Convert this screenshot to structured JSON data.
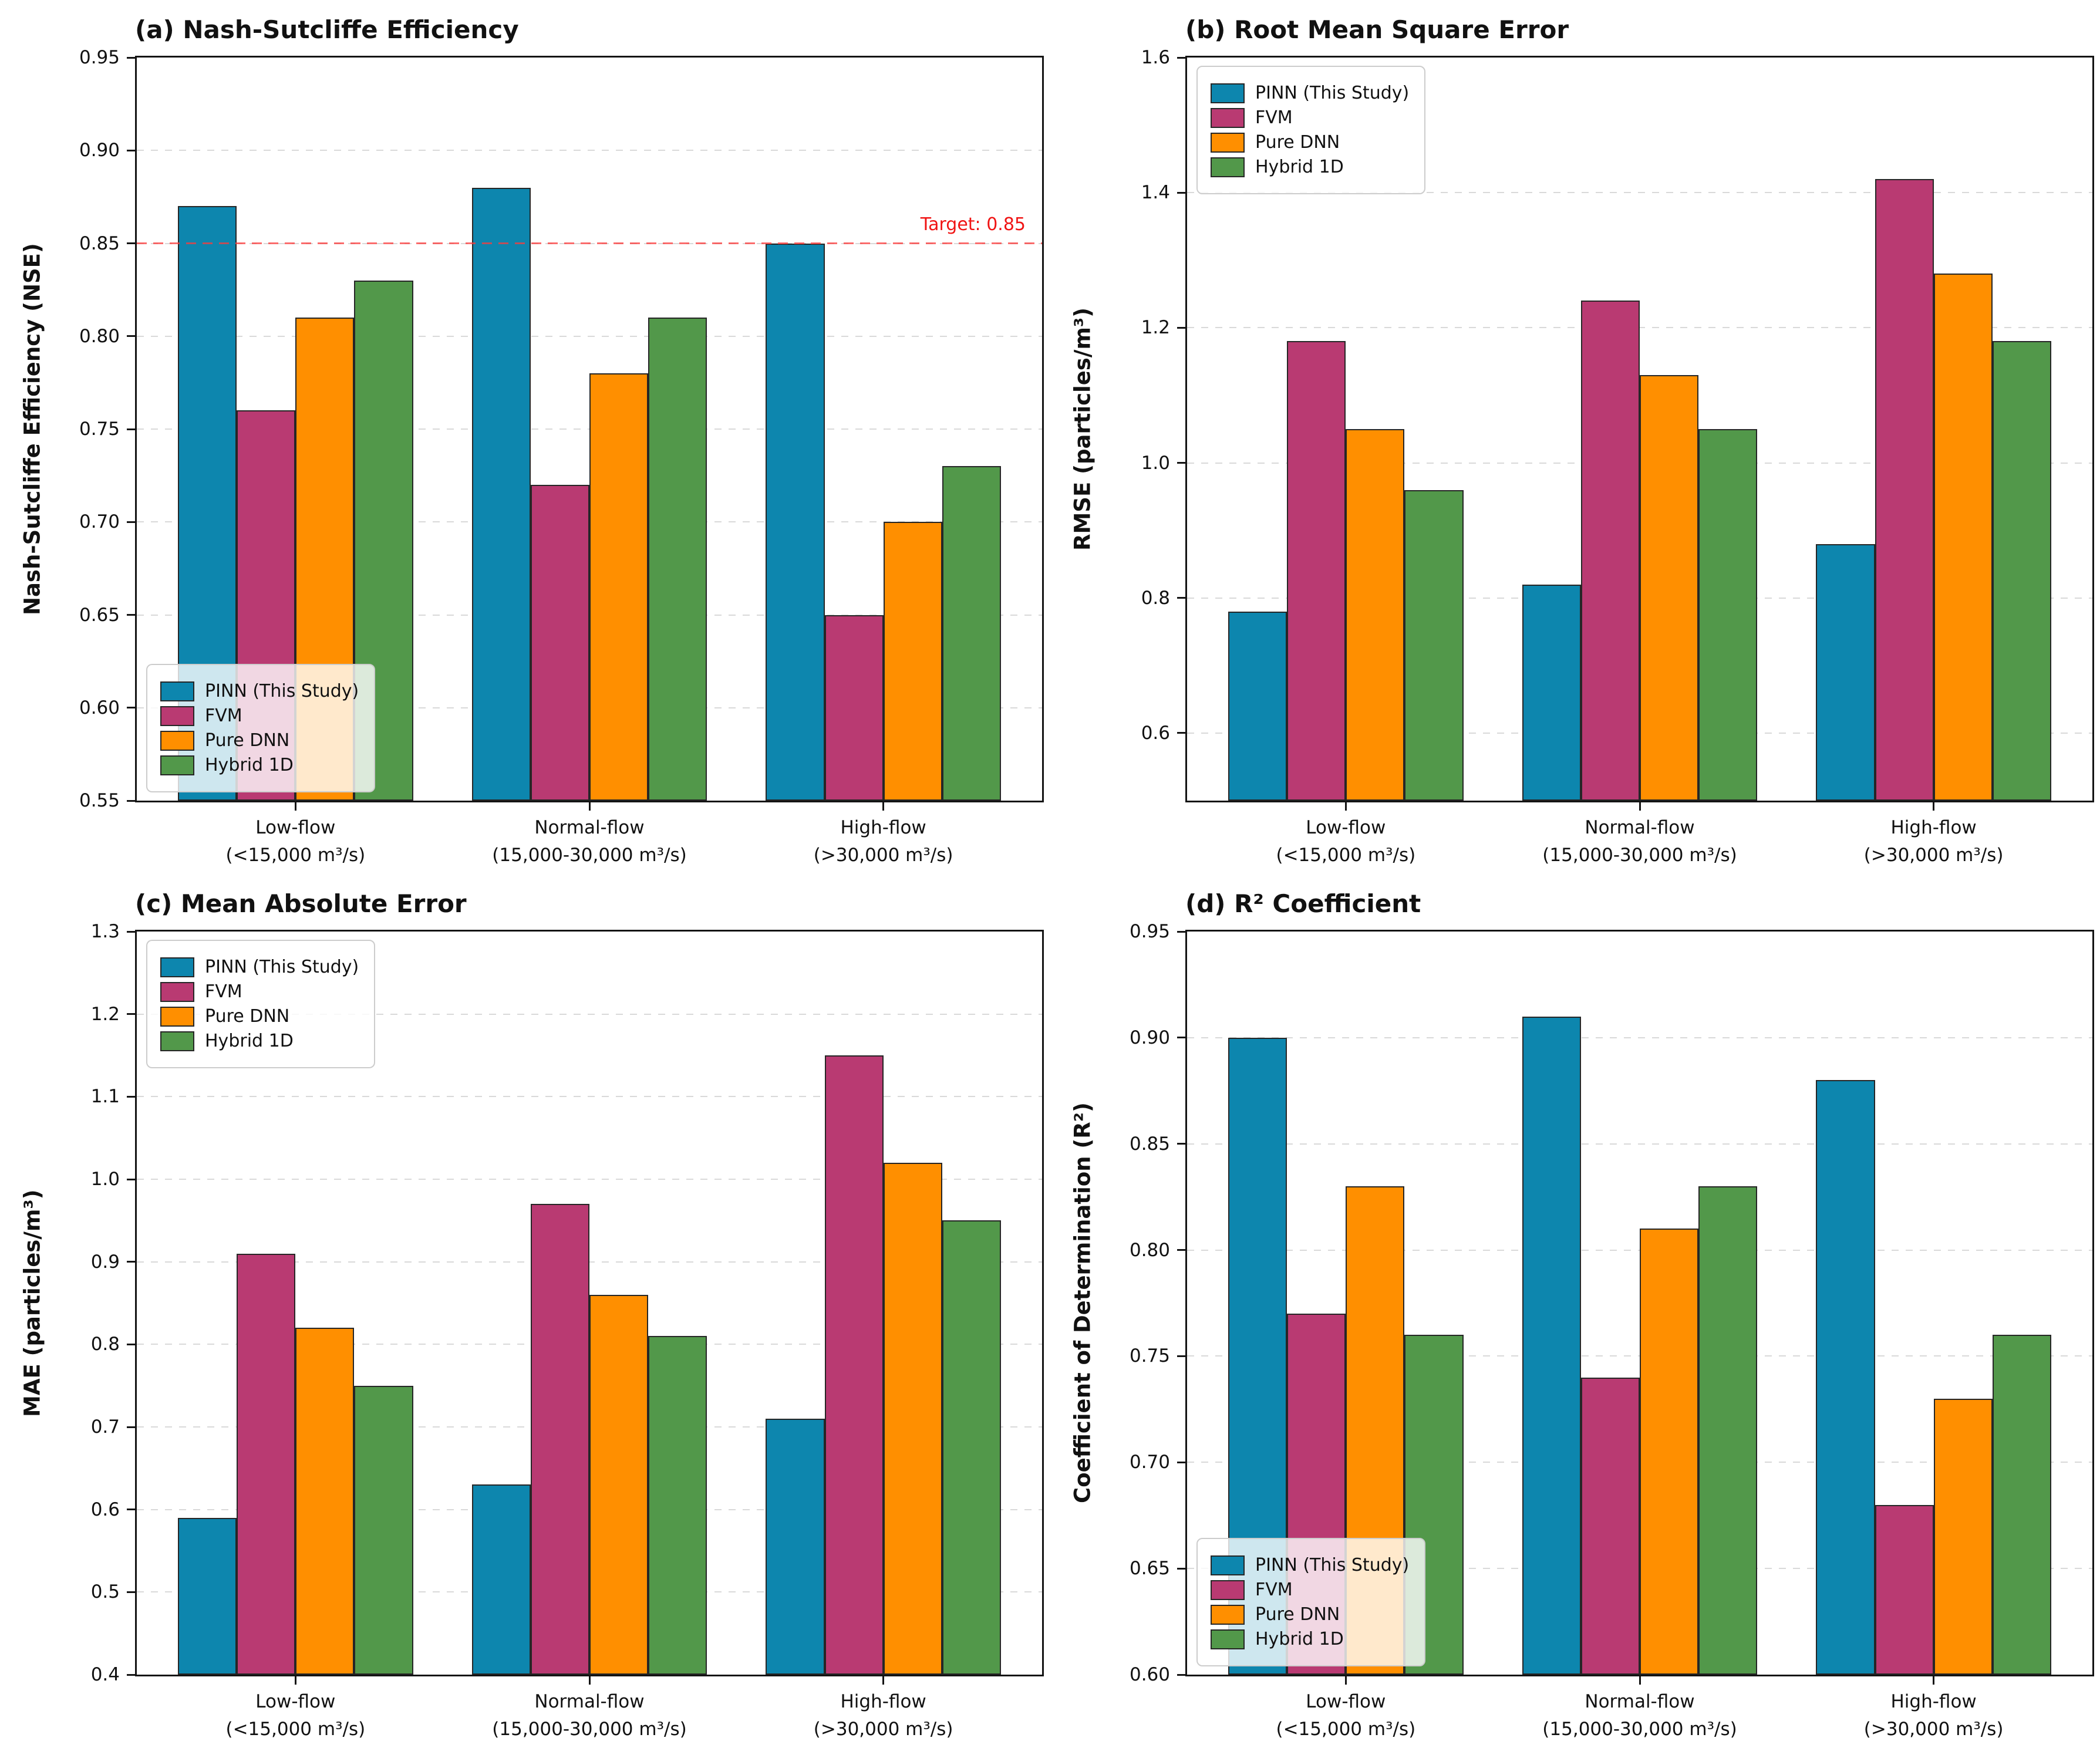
{
  "figure": {
    "background": "#ffffff",
    "bar_edge_color": "#262626",
    "grid_color": "#d9d9d9",
    "spine_color": "#141414",
    "legend_items": [
      {
        "label": "PINN (This Study)",
        "color": "#0d86ae"
      },
      {
        "label": "FVM",
        "color": "#b93a72"
      },
      {
        "label": "Pure DNN",
        "color": "#ff8f00"
      },
      {
        "label": "Hybrid 1D",
        "color": "#52984a"
      }
    ],
    "categories": [
      {
        "line1": "Low-flow",
        "line2": "(<15,000 m³/s)"
      },
      {
        "line1": "Normal-flow",
        "line2": "(15,000-30,000 m³/s)"
      },
      {
        "line1": "High-flow",
        "line2": "(>30,000 m³/s)"
      }
    ]
  },
  "chart_data": [
    {
      "id": "a",
      "type": "bar",
      "title": "(a) Nash-Sutcliffe Efficiency",
      "ylabel": "Nash-Sutcliffe Efficiency (NSE)",
      "ylim": [
        0.55,
        0.95
      ],
      "ytick_values": [
        0.55,
        0.6,
        0.65,
        0.7,
        0.75,
        0.8,
        0.85,
        0.9,
        0.95
      ],
      "ytick_labels": [
        "0.55",
        "0.60",
        "0.65",
        "0.70",
        "0.75",
        "0.80",
        "0.85",
        "0.90",
        "0.95"
      ],
      "grid": true,
      "legend_position": "lower-left",
      "categories": [
        "Low-flow (<15,000 m³/s)",
        "Normal-flow (15,000-30,000 m³/s)",
        "High-flow (>30,000 m³/s)"
      ],
      "series": [
        {
          "name": "PINN (This Study)",
          "color": "#0d86ae",
          "values": [
            0.87,
            0.88,
            0.85
          ]
        },
        {
          "name": "FVM",
          "color": "#b93a72",
          "values": [
            0.76,
            0.72,
            0.65
          ]
        },
        {
          "name": "Pure DNN",
          "color": "#ff8f00",
          "values": [
            0.81,
            0.78,
            0.7
          ]
        },
        {
          "name": "Hybrid 1D",
          "color": "#52984a",
          "values": [
            0.83,
            0.81,
            0.73
          ]
        }
      ],
      "target_line": {
        "value": 0.85,
        "label": "Target: 0.85",
        "line_color": "#fa3c3c",
        "text_color": "#f01414"
      }
    },
    {
      "id": "b",
      "type": "bar",
      "title": "(b) Root Mean Square Error",
      "ylabel": "RMSE (particles/m³)",
      "ylim": [
        0.5,
        1.6
      ],
      "ytick_values": [
        0.6,
        0.8,
        1.0,
        1.2,
        1.4,
        1.6
      ],
      "ytick_labels": [
        "0.6",
        "0.8",
        "1.0",
        "1.2",
        "1.4",
        "1.6"
      ],
      "grid": true,
      "legend_position": "upper-left",
      "categories": [
        "Low-flow (<15,000 m³/s)",
        "Normal-flow (15,000-30,000 m³/s)",
        "High-flow (>30,000 m³/s)"
      ],
      "series": [
        {
          "name": "PINN (This Study)",
          "color": "#0d86ae",
          "values": [
            0.78,
            0.82,
            0.88
          ]
        },
        {
          "name": "FVM",
          "color": "#b93a72",
          "values": [
            1.18,
            1.24,
            1.42
          ]
        },
        {
          "name": "Pure DNN",
          "color": "#ff8f00",
          "values": [
            1.05,
            1.13,
            1.28
          ]
        },
        {
          "name": "Hybrid 1D",
          "color": "#52984a",
          "values": [
            0.96,
            1.05,
            1.18
          ]
        }
      ],
      "target_line": null
    },
    {
      "id": "c",
      "type": "bar",
      "title": "(c) Mean Absolute Error",
      "ylabel": "MAE (particles/m³)",
      "ylim": [
        0.4,
        1.3
      ],
      "ytick_values": [
        0.4,
        0.5,
        0.6,
        0.7,
        0.8,
        0.9,
        1.0,
        1.1,
        1.2,
        1.3
      ],
      "ytick_labels": [
        "0.4",
        "0.5",
        "0.6",
        "0.7",
        "0.8",
        "0.9",
        "1.0",
        "1.1",
        "1.2",
        "1.3"
      ],
      "grid": true,
      "legend_position": "upper-left",
      "categories": [
        "Low-flow (<15,000 m³/s)",
        "Normal-flow (15,000-30,000 m³/s)",
        "High-flow (>30,000 m³/s)"
      ],
      "series": [
        {
          "name": "PINN (This Study)",
          "color": "#0d86ae",
          "values": [
            0.59,
            0.63,
            0.71
          ]
        },
        {
          "name": "FVM",
          "color": "#b93a72",
          "values": [
            0.91,
            0.97,
            1.15
          ]
        },
        {
          "name": "Pure DNN",
          "color": "#ff8f00",
          "values": [
            0.82,
            0.86,
            1.02
          ]
        },
        {
          "name": "Hybrid 1D",
          "color": "#52984a",
          "values": [
            0.75,
            0.81,
            0.95
          ]
        }
      ],
      "target_line": null
    },
    {
      "id": "d",
      "type": "bar",
      "title": "(d) R² Coefficient",
      "ylabel": "Coefficient of Determination (R²)",
      "ylim": [
        0.6,
        0.95
      ],
      "ytick_values": [
        0.6,
        0.65,
        0.7,
        0.75,
        0.8,
        0.85,
        0.9,
        0.95
      ],
      "ytick_labels": [
        "0.60",
        "0.65",
        "0.70",
        "0.75",
        "0.80",
        "0.85",
        "0.90",
        "0.95"
      ],
      "grid": true,
      "legend_position": "lower-left",
      "categories": [
        "Low-flow (<15,000 m³/s)",
        "Normal-flow (15,000-30,000 m³/s)",
        "High-flow (>30,000 m³/s)"
      ],
      "series": [
        {
          "name": "PINN (This Study)",
          "color": "#0d86ae",
          "values": [
            0.9,
            0.91,
            0.88
          ]
        },
        {
          "name": "FVM",
          "color": "#b93a72",
          "values": [
            0.77,
            0.74,
            0.68
          ]
        },
        {
          "name": "Pure DNN",
          "color": "#ff8f00",
          "values": [
            0.83,
            0.81,
            0.73
          ]
        },
        {
          "name": "Hybrid 1D",
          "color": "#52984a",
          "values": [
            0.76,
            0.83,
            0.76
          ]
        }
      ],
      "target_line": null
    }
  ]
}
